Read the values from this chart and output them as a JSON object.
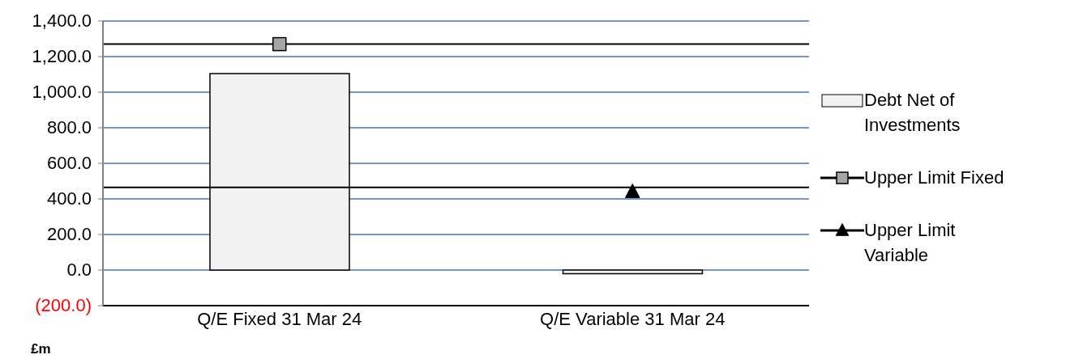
{
  "chart_data": {
    "type": "bar",
    "categories": [
      "Q/E Fixed 31 Mar 24",
      "Q/E Variable 31 Mar 24"
    ],
    "series": [
      {
        "name": "Debt Net of Investments",
        "color": "#f2f2f2",
        "values": [
          1105,
          -20
        ]
      },
      {
        "name": "Upper Limit Fixed",
        "type": "line",
        "color": "#a6a6a6",
        "marker": "square",
        "values": [
          1270,
          null
        ]
      },
      {
        "name": "Upper Limit Variable",
        "type": "line",
        "color": "#000000",
        "marker": "triangle",
        "values": [
          null,
          440
        ]
      }
    ],
    "ylim": [
      -200,
      1400
    ],
    "yticks": [
      {
        "value": -200,
        "label": "(200.0)"
      },
      {
        "value": 0,
        "label": "0.0"
      },
      {
        "value": 200,
        "label": "200.0"
      },
      {
        "value": 400,
        "label": "400.0"
      },
      {
        "value": 600,
        "label": "600.0"
      },
      {
        "value": 800,
        "label": "800.0"
      },
      {
        "value": 1000,
        "label": "1,000.0"
      },
      {
        "value": 1200,
        "label": "1,200.0"
      },
      {
        "value": 1400,
        "label": "1,400.0"
      }
    ],
    "ref_lines": [
      {
        "axis": "y",
        "value": 1270,
        "color": "#000000"
      },
      {
        "axis": "y",
        "value": 465,
        "color": "#000000"
      }
    ],
    "grid": "y",
    "legend": "right",
    "annotations": [
      "£m"
    ]
  }
}
